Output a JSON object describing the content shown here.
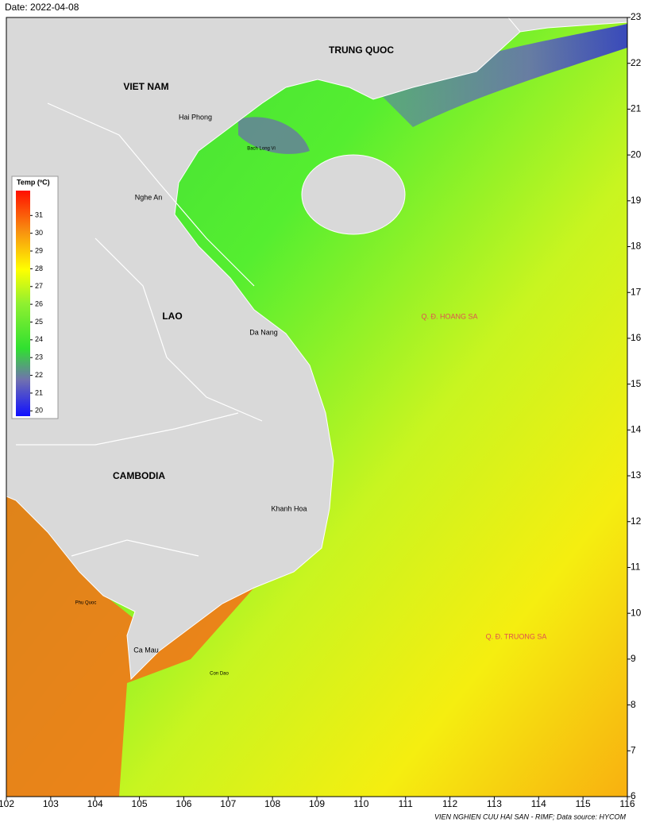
{
  "title": "Date: 2022-04-08",
  "map": {
    "xlim": [
      102,
      116
    ],
    "xticks": [
      102,
      103,
      104,
      105,
      106,
      107,
      108,
      109,
      110,
      111,
      112,
      113,
      114,
      115,
      116
    ],
    "ylim": [
      6,
      23
    ],
    "yticks": [
      6,
      7,
      8,
      9,
      10,
      11,
      12,
      13,
      14,
      15,
      16,
      17,
      18,
      19,
      20,
      21,
      22,
      23
    ],
    "countries": [
      "TRUNG QUOC",
      "VIET NAM",
      "LAO",
      "CAMBODIA"
    ],
    "places": [
      "Hai Phong",
      "Nghe An",
      "Da Nang",
      "Khanh Hoa",
      "Ca Mau"
    ],
    "small_places": [
      "Bach Long Vi",
      "Phu Quoc",
      "Con Dao"
    ],
    "islands": [
      "Q. Đ. HOANG SA",
      "Q. Đ. TRUONG SA"
    ]
  },
  "legend": {
    "title": "Temp (ºC)",
    "clim": [
      19.7,
      32.4
    ],
    "ticks": [
      20,
      21,
      22,
      23,
      24,
      25,
      26,
      27,
      28,
      29,
      30,
      31
    ]
  },
  "credit": "VIEN NGHIEN CUU HAI SAN - RIMF; Data source: HYCOM"
}
